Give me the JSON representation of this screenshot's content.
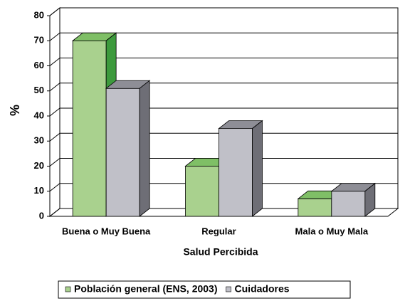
{
  "chart_data": {
    "type": "bar3d",
    "xlabel": "Salud Percibida",
    "ylabel": "%",
    "categories": [
      "Buena o Muy Buena",
      "Regular",
      "Mala o Muy Mala"
    ],
    "series": [
      {
        "name": "Población general (ENS, 2003)",
        "color": "#a9d18e",
        "top_color": "#7fbf66",
        "side_color": "#3d9a3d",
        "values": [
          70,
          20,
          7
        ]
      },
      {
        "name": "Cuidadores",
        "color": "#c0c0c8",
        "top_color": "#8e8e96",
        "side_color": "#6e6e76",
        "values": [
          51,
          35,
          10
        ]
      }
    ],
    "ylim": [
      0,
      80
    ],
    "yticks": [
      0,
      10,
      20,
      30,
      40,
      50,
      60,
      70,
      80
    ],
    "grid": true,
    "legend": "bottom"
  }
}
